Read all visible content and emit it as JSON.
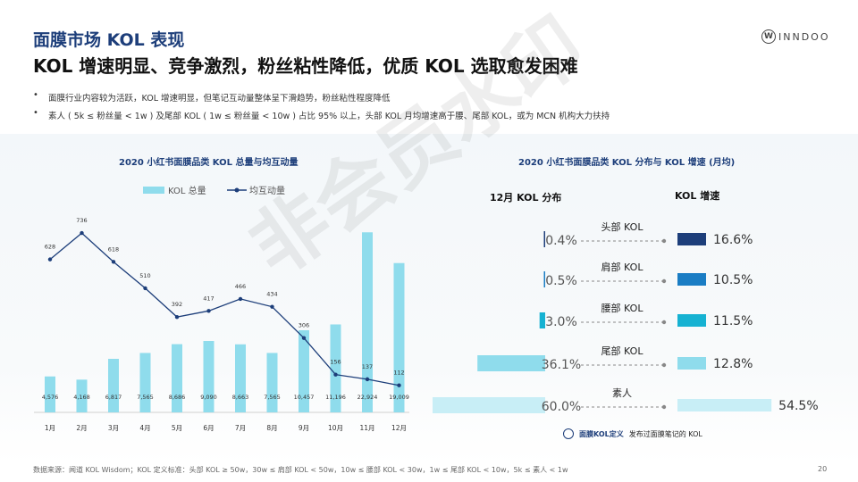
{
  "header": {
    "title": "面膜市场 KOL 表现",
    "subtitle": "KOL 增速明显、竞争激烈，粉丝粘性降低，优质 KOL 选取愈发困难",
    "logo_letter": "W",
    "logo_text": "INNDOO"
  },
  "bullets": [
    "面膜行业内容较为活跃，KOL 增速明显，但笔记互动量整体呈下滑趋势，粉丝粘性程度降低",
    "素人 ( 5k ≤ 粉丝量 < 1w ) 及尾部 KOL ( 1w ≤ 粉丝量 < 10w ) 占比 95% 以上，头部 KOL 月均增速高于腰、尾部 KOL，或为 MCN 机构大力扶持"
  ],
  "watermark": "非会员水印",
  "left_chart_title": "2020 小红书面膜品类 KOL 总量与均互动量",
  "right_chart_title": "2020 小红书面膜品类 KOL 分布与 KOL 增速 (月均)",
  "chart_data": [
    {
      "type": "bar",
      "title": "2020 小红书面膜品类 KOL 总量与均互动量",
      "categories": [
        "1月",
        "2月",
        "3月",
        "4月",
        "5月",
        "6月",
        "7月",
        "8月",
        "9月",
        "10月",
        "11月",
        "12月"
      ],
      "series": [
        {
          "name": "KOL 总量",
          "type": "bar",
          "color": "#8fdcec",
          "values": [
            4576,
            4168,
            6817,
            7565,
            8686,
            9090,
            8663,
            7565,
            10457,
            11196,
            22924,
            19009
          ],
          "labels": [
            "4,576",
            "4,168",
            "6,817",
            "7,565",
            "8,686",
            "9,090",
            "8,663",
            "7,565",
            "10,457",
            "11,196",
            "22,924",
            "19,009"
          ]
        },
        {
          "name": "均互动量",
          "type": "line",
          "color": "#1d3e7a",
          "values": [
            628,
            736,
            618,
            510,
            392,
            417,
            466,
            434,
            306,
            156,
            137,
            112
          ]
        }
      ],
      "legend": "top"
    },
    {
      "type": "bar",
      "title": "2020 小红书面膜品类 KOL 分布与 KOL 增速 (月均)",
      "left_heading": "12月 KOL 分布",
      "right_heading": "KOL 增速",
      "categories": [
        "头部 KOL",
        "肩部 KOL",
        "腰部 KOL",
        "尾部 KOL",
        "素人"
      ],
      "series": [
        {
          "name": "12月 KOL 分布",
          "values": [
            0.4,
            0.5,
            3.0,
            36.1,
            60.0
          ],
          "labels": [
            "0.4%",
            "0.5%",
            "3.0%",
            "36.1%",
            "60.0%"
          ],
          "colors": [
            "#1d3e7a",
            "#1a7dc4",
            "#16b2d2",
            "#8fdcec",
            "#c8eef6"
          ]
        },
        {
          "name": "KOL 增速",
          "values": [
            16.6,
            10.5,
            11.5,
            12.8,
            54.5
          ],
          "labels": [
            "16.6%",
            "10.5%",
            "11.5%",
            "12.8%",
            "54.5%"
          ],
          "colors": [
            "#1d3e7a",
            "#1a7dc4",
            "#16b2d2",
            "#8fdcec",
            "#c8eef6"
          ]
        }
      ]
    }
  ],
  "definition_note": {
    "label": "面膜KOL定义",
    "text": "发布过面膜笔记的 KOL"
  },
  "footer": "数据来源：闻道 KOL Wisdom；KOL 定义标准：头部 KOL ≥ 50w，30w ≤ 肩部 KOL < 50w，10w ≤ 腰部 KOL < 30w，1w ≤ 尾部 KOL < 10w，5k ≤ 素人 < 1w",
  "page_number": "20"
}
